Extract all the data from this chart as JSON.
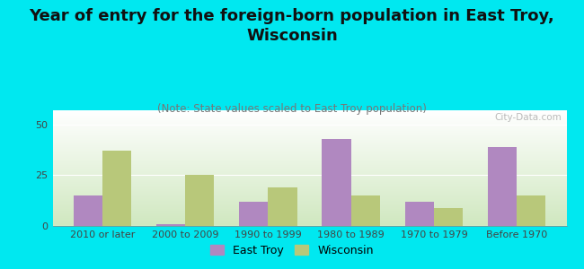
{
  "title": "Year of entry for the foreign-born population in East Troy,\nWisconsin",
  "subtitle": "(Note: State values scaled to East Troy population)",
  "categories": [
    "2010 or later",
    "2000 to 2009",
    "1990 to 1999",
    "1980 to 1989",
    "1970 to 1979",
    "Before 1970"
  ],
  "east_troy": [
    15,
    1,
    12,
    43,
    12,
    39
  ],
  "wisconsin": [
    37,
    25,
    19,
    15,
    9,
    15
  ],
  "east_troy_color": "#b088c0",
  "wisconsin_color": "#b8c87a",
  "background_outer": "#00e8f0",
  "ylim": [
    0,
    57
  ],
  "yticks": [
    0,
    25,
    50
  ],
  "bar_width": 0.35,
  "title_fontsize": 13,
  "subtitle_fontsize": 8.5,
  "tick_fontsize": 8,
  "legend_fontsize": 9,
  "watermark": "City-Data.com",
  "gradient_top": "#ffffff",
  "gradient_bottom": "#d0e8c0"
}
